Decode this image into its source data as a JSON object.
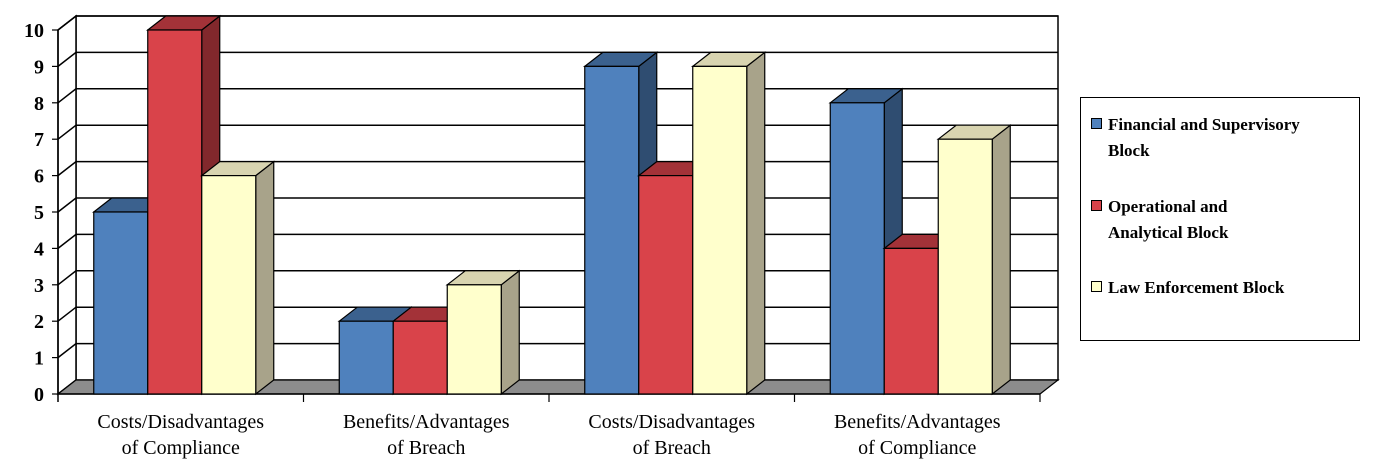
{
  "chart_data": {
    "type": "bar",
    "categories": [
      [
        "Costs/Disadvantages",
        "of Compliance"
      ],
      [
        "Benefits/Advantages",
        "of Breach"
      ],
      [
        "Costs/Disadvantages",
        "of Breach"
      ],
      [
        "Benefits/Advantages",
        "of Compliance"
      ]
    ],
    "series": [
      {
        "name": "Financial and Supervisory Block",
        "values": [
          5,
          2,
          9,
          8
        ],
        "color": "#4F81BD"
      },
      {
        "name": "Operational and Analytical Block",
        "values": [
          10,
          2,
          6,
          4
        ],
        "color": "#D9434A"
      },
      {
        "name": "Law Enforcement Block",
        "values": [
          6,
          3,
          9,
          7
        ],
        "color": "#FFFFCC"
      }
    ],
    "ylim": [
      0,
      10
    ],
    "yticks": [
      "0",
      "1",
      "2",
      "3",
      "4",
      "5",
      "6",
      "7",
      "8",
      "9",
      "10"
    ],
    "grid": true,
    "legend_position": "right",
    "three_d": true
  },
  "legend": {
    "items": [
      [
        "Financial and Supervisory",
        "Block"
      ],
      [
        "Operational and",
        "Analytical Block"
      ],
      [
        "Law Enforcement Block"
      ]
    ]
  }
}
